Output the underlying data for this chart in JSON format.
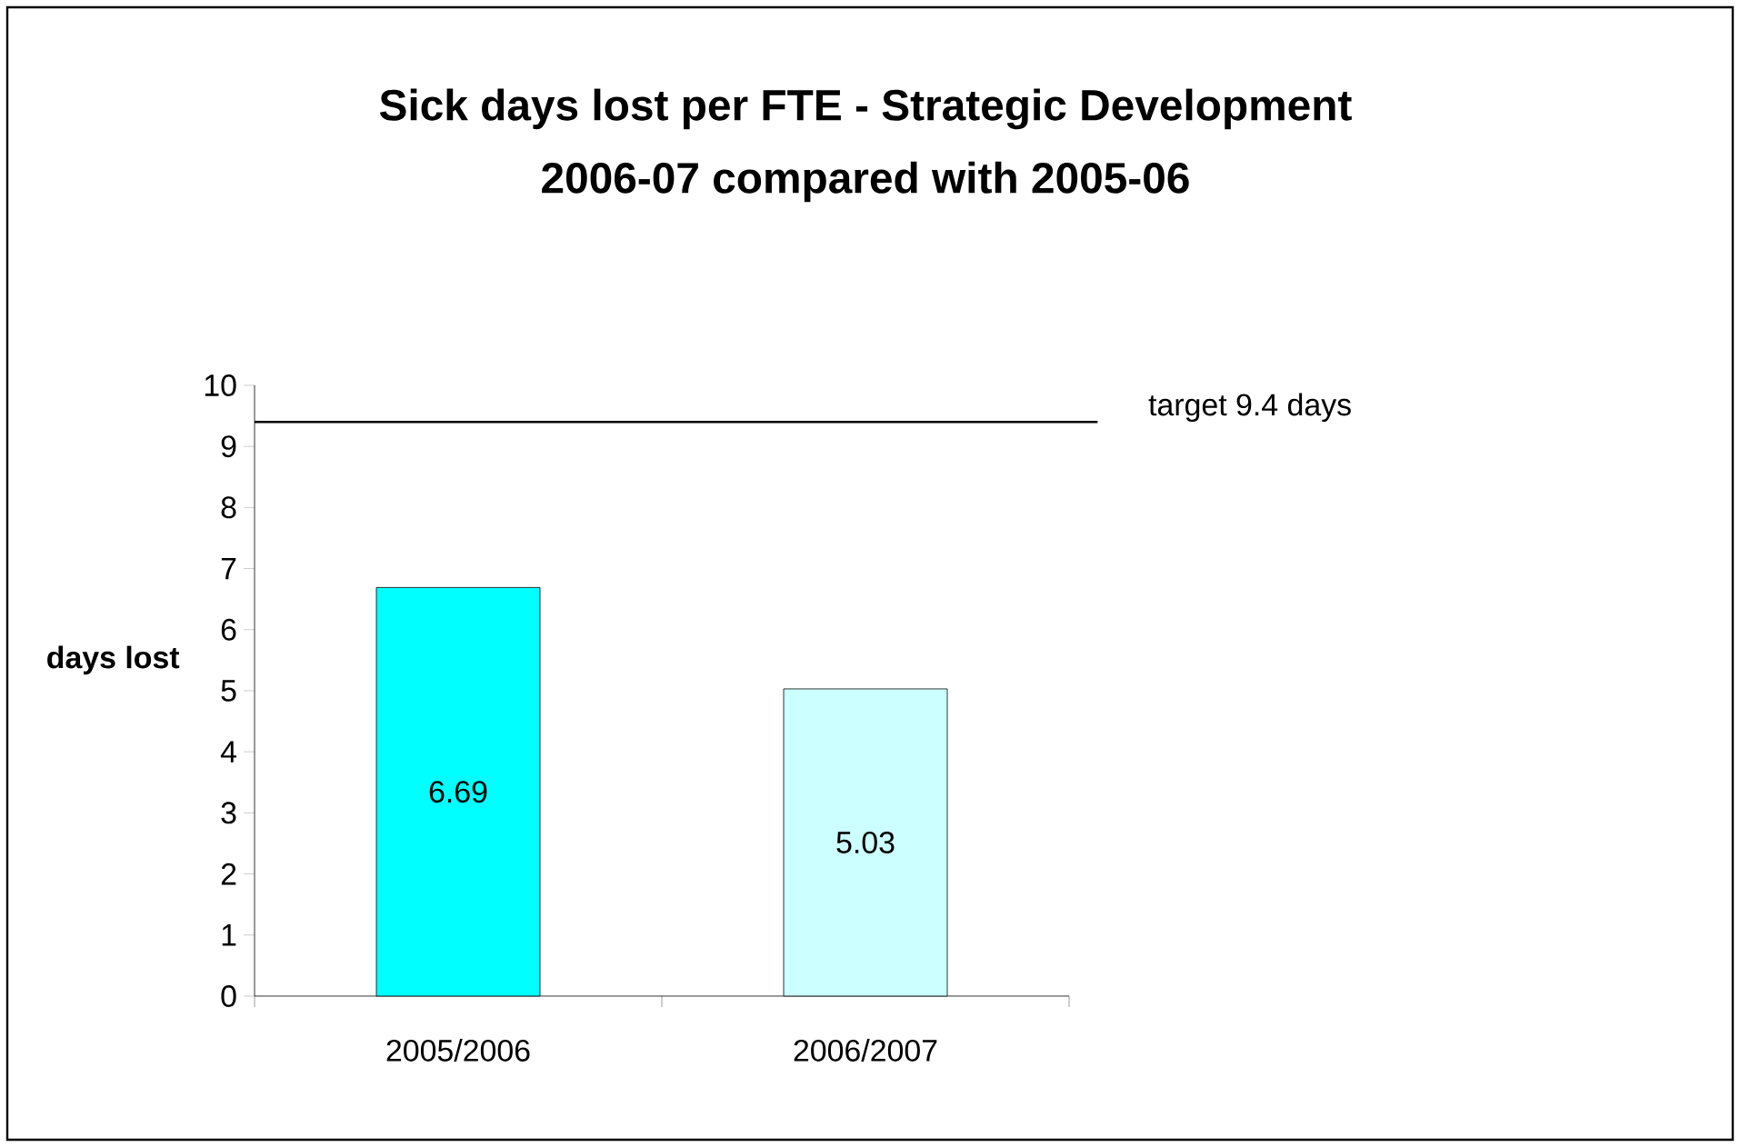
{
  "chart_data": {
    "type": "bar",
    "title": "Sick days lost per FTE - Strategic Development",
    "subtitle": "2006-07 compared with 2005-06",
    "ylabel": "days lost",
    "categories": [
      "2005/2006",
      "2006/2007"
    ],
    "values": [
      6.69,
      5.03
    ],
    "colors": [
      "#00ffff",
      "#ccffff"
    ],
    "ylim": [
      0,
      10
    ],
    "yticks": [
      0,
      1,
      2,
      3,
      4,
      5,
      6,
      7,
      8,
      9,
      10
    ],
    "data_labels": true,
    "ref_lines": [
      {
        "axis": "y",
        "value": 9.4,
        "label": "target 9.4 days"
      }
    ]
  }
}
